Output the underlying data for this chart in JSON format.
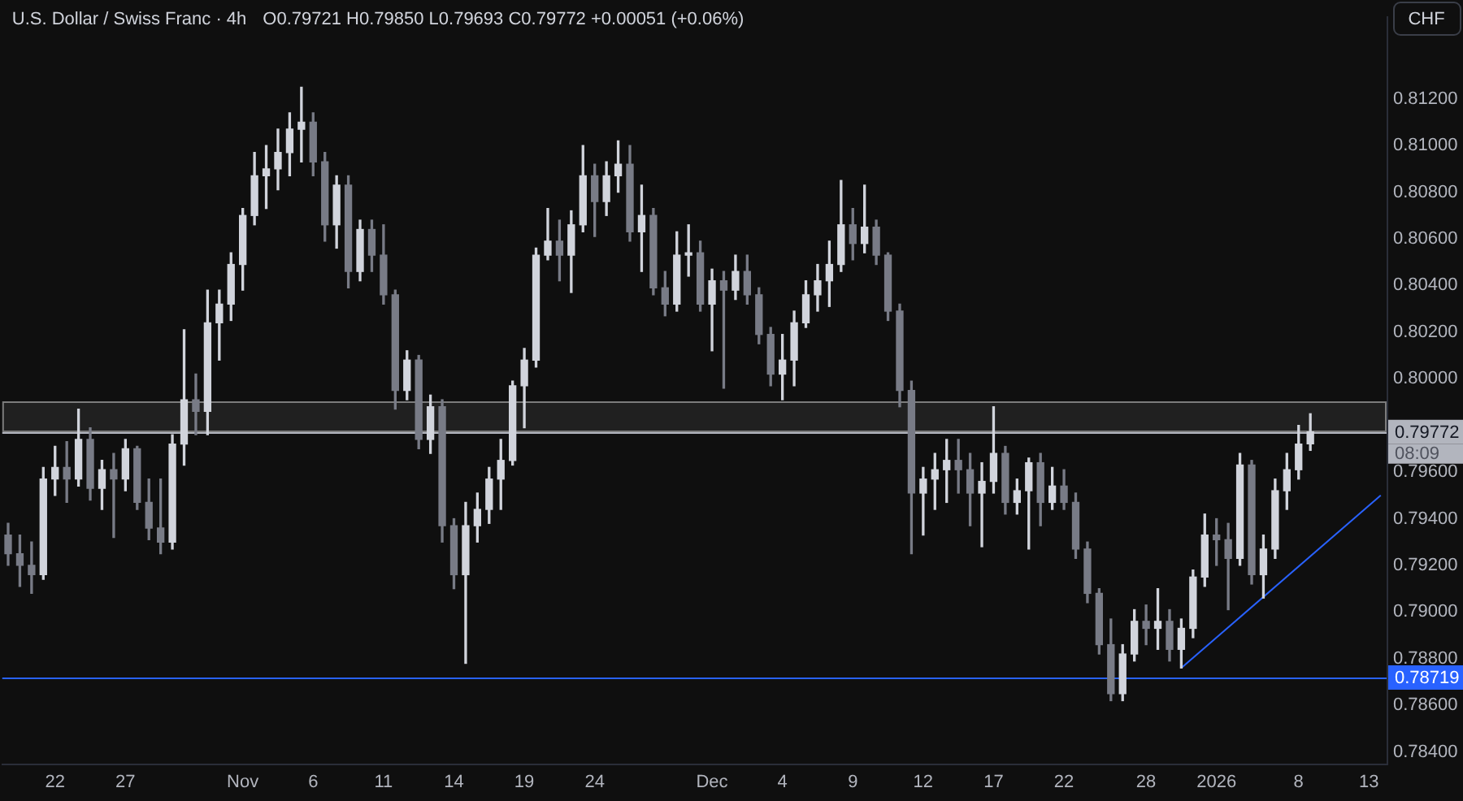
{
  "chart_data": {
    "type": "candlestick",
    "title": "U.S. Dollar / Swiss Franc · 4h",
    "subtitle": "O0.79721 H0.79850 L0.79693 C0.79772 +0.00051 (+0.06%)",
    "ylabel": "CHF",
    "annotations": [
      "08:09"
    ],
    "categories": [
      null,
      null,
      null,
      null,
      "22",
      null,
      null,
      null,
      null,
      null,
      "27",
      null,
      null,
      null,
      null,
      null,
      null,
      null,
      null,
      null,
      "Nov",
      null,
      null,
      null,
      null,
      null,
      "6",
      null,
      null,
      null,
      null,
      null,
      "11",
      null,
      null,
      null,
      null,
      null,
      "14",
      null,
      null,
      null,
      null,
      null,
      "19",
      null,
      null,
      null,
      null,
      null,
      "24",
      null,
      null,
      null,
      null,
      null,
      null,
      null,
      null,
      null,
      "Dec",
      null,
      null,
      null,
      null,
      null,
      "4",
      null,
      null,
      null,
      null,
      null,
      "9",
      null,
      null,
      null,
      null,
      null,
      "12",
      null,
      null,
      null,
      null,
      null,
      "17",
      null,
      null,
      null,
      null,
      null,
      "22",
      null,
      null,
      null,
      null,
      null,
      null,
      "28",
      null,
      null,
      null,
      null,
      null,
      "2026",
      null,
      null,
      null,
      null,
      null,
      null,
      "8",
      null,
      null,
      null,
      null,
      null,
      "13",
      null
    ],
    "ohlc": [
      [
        0.7933,
        0.7938,
        0.792,
        0.7925
      ],
      [
        0.7925,
        0.7933,
        0.7911,
        0.792
      ],
      [
        0.792,
        0.793,
        0.7908,
        0.7916
      ],
      [
        0.7916,
        0.7962,
        0.7914,
        0.7957
      ],
      [
        0.7957,
        0.7971,
        0.795,
        0.7962
      ],
      [
        0.7962,
        0.7973,
        0.7947,
        0.7957
      ],
      [
        0.7957,
        0.7987,
        0.7954,
        0.7974
      ],
      [
        0.7974,
        0.7979,
        0.7948,
        0.7953
      ],
      [
        0.7953,
        0.7965,
        0.7944,
        0.7961
      ],
      [
        0.7961,
        0.7968,
        0.7932,
        0.7957
      ],
      [
        0.7957,
        0.7974,
        0.7952,
        0.797
      ],
      [
        0.797,
        0.7971,
        0.7944,
        0.7947
      ],
      [
        0.7947,
        0.7957,
        0.7931,
        0.7936
      ],
      [
        0.7936,
        0.7957,
        0.7925,
        0.793
      ],
      [
        0.793,
        0.7976,
        0.7927,
        0.7972
      ],
      [
        0.7972,
        0.8021,
        0.7963,
        0.7991
      ],
      [
        0.7991,
        0.8002,
        0.7976,
        0.7986
      ],
      [
        0.7986,
        0.8038,
        0.7976,
        0.8024
      ],
      [
        0.8024,
        0.8038,
        0.8008,
        0.8032
      ],
      [
        0.8032,
        0.8054,
        0.8025,
        0.8049
      ],
      [
        0.8049,
        0.8073,
        0.8038,
        0.807
      ],
      [
        0.807,
        0.8097,
        0.8066,
        0.8087
      ],
      [
        0.8087,
        0.81,
        0.8073,
        0.809
      ],
      [
        0.809,
        0.8107,
        0.8081,
        0.8097
      ],
      [
        0.8097,
        0.8114,
        0.8087,
        0.8107
      ],
      [
        0.8107,
        0.8125,
        0.8093,
        0.811
      ],
      [
        0.811,
        0.8114,
        0.8087,
        0.8093
      ],
      [
        0.8093,
        0.8097,
        0.8059,
        0.8066
      ],
      [
        0.8066,
        0.8087,
        0.8056,
        0.8083
      ],
      [
        0.8083,
        0.8087,
        0.8039,
        0.8046
      ],
      [
        0.8046,
        0.8068,
        0.8042,
        0.8064
      ],
      [
        0.8064,
        0.8068,
        0.8046,
        0.8053
      ],
      [
        0.8053,
        0.8066,
        0.8032,
        0.8036
      ],
      [
        0.8036,
        0.8038,
        0.7987,
        0.7995
      ],
      [
        0.7995,
        0.8012,
        0.7991,
        0.8008
      ],
      [
        0.8008,
        0.801,
        0.797,
        0.7974
      ],
      [
        0.7974,
        0.7993,
        0.7968,
        0.7988
      ],
      [
        0.7988,
        0.7991,
        0.793,
        0.7937
      ],
      [
        0.7937,
        0.794,
        0.791,
        0.7916
      ],
      [
        0.7916,
        0.7947,
        0.7878,
        0.7937
      ],
      [
        0.7937,
        0.7951,
        0.793,
        0.7944
      ],
      [
        0.7944,
        0.7962,
        0.7938,
        0.7957
      ],
      [
        0.7957,
        0.7974,
        0.7944,
        0.7965
      ],
      [
        0.7965,
        0.7999,
        0.7963,
        0.7997
      ],
      [
        0.7997,
        0.8013,
        0.7979,
        0.8008
      ],
      [
        0.8008,
        0.8056,
        0.8005,
        0.8053
      ],
      [
        0.8053,
        0.8073,
        0.8051,
        0.8059
      ],
      [
        0.8059,
        0.8068,
        0.8042,
        0.8053
      ],
      [
        0.8053,
        0.8072,
        0.8037,
        0.8066
      ],
      [
        0.8066,
        0.81,
        0.8063,
        0.8087
      ],
      [
        0.8087,
        0.8092,
        0.8061,
        0.8076
      ],
      [
        0.8076,
        0.8093,
        0.807,
        0.8087
      ],
      [
        0.8087,
        0.8102,
        0.808,
        0.8092
      ],
      [
        0.8092,
        0.81,
        0.8059,
        0.8063
      ],
      [
        0.8063,
        0.8083,
        0.8046,
        0.807
      ],
      [
        0.807,
        0.8073,
        0.8036,
        0.8039
      ],
      [
        0.8039,
        0.8046,
        0.8027,
        0.8032
      ],
      [
        0.8032,
        0.8063,
        0.8029,
        0.8053
      ],
      [
        0.8053,
        0.8066,
        0.8044,
        0.8054
      ],
      [
        0.8054,
        0.8059,
        0.8029,
        0.8032
      ],
      [
        0.8032,
        0.8047,
        0.8012,
        0.8042
      ],
      [
        0.8042,
        0.8046,
        0.7996,
        0.8038
      ],
      [
        0.8038,
        0.8053,
        0.8034,
        0.8046
      ],
      [
        0.8046,
        0.8053,
        0.8032,
        0.8036
      ],
      [
        0.8036,
        0.8039,
        0.8015,
        0.8019
      ],
      [
        0.8019,
        0.8022,
        0.7997,
        0.8002
      ],
      [
        0.8002,
        0.8019,
        0.7991,
        0.8008
      ],
      [
        0.8008,
        0.8029,
        0.7997,
        0.8024
      ],
      [
        0.8024,
        0.8042,
        0.8022,
        0.8036
      ],
      [
        0.8036,
        0.8049,
        0.8029,
        0.8042
      ],
      [
        0.8042,
        0.8059,
        0.8031,
        0.8049
      ],
      [
        0.8049,
        0.8085,
        0.8046,
        0.8066
      ],
      [
        0.8066,
        0.8073,
        0.8051,
        0.8058
      ],
      [
        0.8058,
        0.8083,
        0.8054,
        0.8065
      ],
      [
        0.8065,
        0.8068,
        0.8049,
        0.8053
      ],
      [
        0.8053,
        0.8054,
        0.8025,
        0.8029
      ],
      [
        0.8029,
        0.8032,
        0.7988,
        0.7995
      ],
      [
        0.7995,
        0.7999,
        0.7925,
        0.7951
      ],
      [
        0.7951,
        0.7962,
        0.7933,
        0.7957
      ],
      [
        0.7957,
        0.7968,
        0.7944,
        0.7961
      ],
      [
        0.7961,
        0.7974,
        0.7947,
        0.7965
      ],
      [
        0.7965,
        0.7974,
        0.7951,
        0.7961
      ],
      [
        0.7961,
        0.7968,
        0.7937,
        0.7951
      ],
      [
        0.7951,
        0.7964,
        0.7928,
        0.7956
      ],
      [
        0.7956,
        0.7988,
        0.7951,
        0.7968
      ],
      [
        0.7968,
        0.7971,
        0.7942,
        0.7947
      ],
      [
        0.7947,
        0.7957,
        0.7942,
        0.7952
      ],
      [
        0.7952,
        0.7966,
        0.7927,
        0.7964
      ],
      [
        0.7964,
        0.7968,
        0.7937,
        0.7947
      ],
      [
        0.7947,
        0.7962,
        0.7944,
        0.7954
      ],
      [
        0.7954,
        0.7961,
        0.7944,
        0.7947
      ],
      [
        0.7947,
        0.7951,
        0.7923,
        0.7927
      ],
      [
        0.7927,
        0.793,
        0.7904,
        0.7908
      ],
      [
        0.7908,
        0.791,
        0.7882,
        0.7886
      ],
      [
        0.7886,
        0.7897,
        0.7862,
        0.7865
      ],
      [
        0.7865,
        0.7886,
        0.7862,
        0.7882
      ],
      [
        0.7882,
        0.7901,
        0.7879,
        0.7896
      ],
      [
        0.7896,
        0.7903,
        0.7886,
        0.7893
      ],
      [
        0.7893,
        0.791,
        0.7884,
        0.7896
      ],
      [
        0.7896,
        0.7901,
        0.7879,
        0.7884
      ],
      [
        0.7884,
        0.7897,
        0.7876,
        0.7893
      ],
      [
        0.7893,
        0.7918,
        0.7889,
        0.7915
      ],
      [
        0.7915,
        0.7942,
        0.7911,
        0.7933
      ],
      [
        0.7933,
        0.794,
        0.792,
        0.7931
      ],
      [
        0.7931,
        0.7938,
        0.7901,
        0.7923
      ],
      [
        0.7923,
        0.7968,
        0.792,
        0.7963
      ],
      [
        0.7963,
        0.7965,
        0.7912,
        0.7916
      ],
      [
        0.7916,
        0.7933,
        0.7906,
        0.7927
      ],
      [
        0.7927,
        0.7957,
        0.7923,
        0.7952
      ],
      [
        0.7952,
        0.7968,
        0.7944,
        0.7961
      ],
      [
        0.7961,
        0.798,
        0.7957,
        0.7972
      ],
      [
        0.79721,
        0.7985,
        0.79693,
        0.79772
      ],
      null,
      null,
      null,
      null,
      null,
      null
    ],
    "colors": [
      "#787b86",
      "#787b86",
      "#787b86",
      "#d1d4dc",
      "#d1d4dc",
      "#787b86",
      "#d1d4dc",
      "#787b86",
      "#d1d4dc",
      "#787b86",
      "#d1d4dc",
      "#787b86",
      "#787b86",
      "#787b86",
      "#d1d4dc",
      "#d1d4dc",
      "#787b86",
      "#d1d4dc",
      "#d1d4dc",
      "#d1d4dc",
      "#d1d4dc",
      "#d1d4dc",
      "#d1d4dc",
      "#d1d4dc",
      "#d1d4dc",
      "#d1d4dc",
      "#787b86",
      "#787b86",
      "#d1d4dc",
      "#787b86",
      "#d1d4dc",
      "#787b86",
      "#787b86",
      "#787b86",
      "#d1d4dc",
      "#787b86",
      "#d1d4dc",
      "#787b86",
      "#787b86",
      "#d1d4dc",
      "#d1d4dc",
      "#d1d4dc",
      "#d1d4dc",
      "#d1d4dc",
      "#d1d4dc",
      "#d1d4dc",
      "#d1d4dc",
      "#787b86",
      "#d1d4dc",
      "#d1d4dc",
      "#787b86",
      "#d1d4dc",
      "#d1d4dc",
      "#787b86",
      "#d1d4dc",
      "#787b86",
      "#787b86",
      "#d1d4dc",
      "#d1d4dc",
      "#787b86",
      "#d1d4dc",
      "#787b86",
      "#d1d4dc",
      "#787b86",
      "#787b86",
      "#787b86",
      "#d1d4dc",
      "#d1d4dc",
      "#d1d4dc",
      "#d1d4dc",
      "#d1d4dc",
      "#d1d4dc",
      "#787b86",
      "#d1d4dc",
      "#787b86",
      "#787b86",
      "#787b86",
      "#787b86",
      "#d1d4dc",
      "#d1d4dc",
      "#d1d4dc",
      "#787b86",
      "#787b86",
      "#d1d4dc",
      "#d1d4dc",
      "#787b86",
      "#d1d4dc",
      "#d1d4dc",
      "#787b86",
      "#d1d4dc",
      "#787b86",
      "#787b86",
      "#787b86",
      "#787b86",
      "#787b86",
      "#d1d4dc",
      "#d1d4dc",
      "#787b86",
      "#d1d4dc",
      "#787b86",
      "#d1d4dc",
      "#d1d4dc",
      "#d1d4dc",
      "#787b86",
      "#787b86",
      "#d1d4dc",
      "#787b86",
      "#d1d4dc",
      "#d1d4dc",
      "#d1d4dc",
      "#d1d4dc",
      "#d1d4dc",
      null,
      null,
      null,
      null,
      null,
      null
    ],
    "series": [
      {
        "type": "line",
        "color": "#2962ff",
        "values": [
          null,
          null,
          null,
          null,
          null,
          null,
          null,
          null,
          null,
          null,
          null,
          null,
          null,
          null,
          null,
          null,
          null,
          null,
          null,
          null,
          null,
          null,
          null,
          null,
          null,
          null,
          null,
          null,
          null,
          null,
          null,
          null,
          null,
          null,
          null,
          null,
          null,
          null,
          null,
          null,
          null,
          null,
          null,
          null,
          null,
          null,
          null,
          null,
          null,
          null,
          null,
          null,
          null,
          null,
          null,
          null,
          null,
          null,
          null,
          null,
          null,
          null,
          null,
          null,
          null,
          null,
          null,
          null,
          null,
          null,
          null,
          null,
          null,
          null,
          null,
          null,
          null,
          null,
          null,
          null,
          null,
          null,
          null,
          null,
          null,
          null,
          null,
          null,
          null,
          null,
          null,
          null,
          null,
          null,
          null,
          null,
          null,
          null,
          null,
          null,
          0.7876,
          null,
          null,
          null,
          null,
          null,
          null,
          null,
          null,
          null,
          null,
          null,
          null,
          null,
          null,
          null,
          null,
          0.795
        ]
      }
    ],
    "ylim": [
      0.7835,
      0.8155
    ],
    "yticks": [
      {
        "value": 0.784,
        "label": "0.78400"
      },
      {
        "value": 0.786,
        "label": "0.78600"
      },
      {
        "value": 0.788,
        "label": "0.78800"
      },
      {
        "value": 0.79,
        "label": "0.79000"
      },
      {
        "value": 0.792,
        "label": "0.79200"
      },
      {
        "value": 0.794,
        "label": "0.79400"
      },
      {
        "value": 0.796,
        "label": "0.79600"
      },
      {
        "value": 0.8,
        "label": "0.80000"
      },
      {
        "value": 0.802,
        "label": "0.80200"
      },
      {
        "value": 0.804,
        "label": "0.80400"
      },
      {
        "value": 0.806,
        "label": "0.80600"
      },
      {
        "value": 0.808,
        "label": "0.80800"
      },
      {
        "value": 0.81,
        "label": "0.81000"
      },
      {
        "value": 0.812,
        "label": "0.81200"
      }
    ],
    "ref_lines": [
      {
        "axis": "y",
        "value": 0.78719,
        "label": "0.78719",
        "color": "#2962ff"
      },
      {
        "axis": "y",
        "value": 0.79772,
        "label": "0.79772",
        "color": "#b2b5be"
      }
    ],
    "bands": [
      {
        "axis": "y",
        "from": 0.7978,
        "to": 0.799,
        "color": "#9e9e9e"
      }
    ]
  }
}
